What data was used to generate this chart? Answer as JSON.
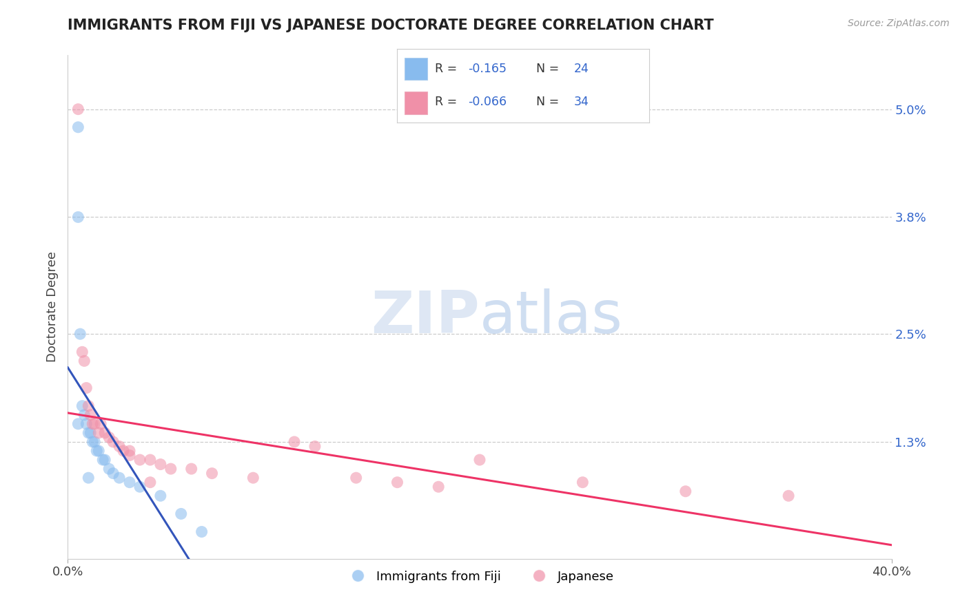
{
  "title": "IMMIGRANTS FROM FIJI VS JAPANESE DOCTORATE DEGREE CORRELATION CHART",
  "source_text": "Source: ZipAtlas.com",
  "ylabel": "Doctorate Degree",
  "xlim": [
    0,
    40
  ],
  "ylim": [
    0,
    5.6
  ],
  "ytick_vals": [
    1.3,
    2.5,
    3.8,
    5.0
  ],
  "ytick_labels": [
    "1.3%",
    "2.5%",
    "3.8%",
    "5.0%"
  ],
  "xtick_vals": [
    0,
    40
  ],
  "xtick_labels": [
    "0.0%",
    "40.0%"
  ],
  "series1_label": "Immigrants from Fiji",
  "series2_label": "Japanese",
  "fiji_color": "#88bbee",
  "japanese_color": "#f090a8",
  "fiji_line_color": "#3355bb",
  "japanese_line_color": "#ee3366",
  "watermark_color": "#dde8f5",
  "title_color": "#222222",
  "grid_color": "#cccccc",
  "background_color": "#ffffff",
  "fiji_R": -0.165,
  "fiji_N": 24,
  "japanese_R": -0.066,
  "japanese_N": 34,
  "fiji_points_x": [
    0.5,
    0.5,
    0.6,
    0.7,
    0.8,
    0.9,
    1.0,
    1.1,
    1.2,
    1.3,
    1.4,
    1.5,
    1.7,
    1.8,
    2.0,
    2.2,
    2.5,
    3.0,
    3.5,
    4.5,
    5.5,
    6.5,
    0.5,
    1.0
  ],
  "fiji_points_y": [
    4.8,
    3.8,
    2.5,
    1.7,
    1.6,
    1.5,
    1.4,
    1.4,
    1.3,
    1.3,
    1.2,
    1.2,
    1.1,
    1.1,
    1.0,
    0.95,
    0.9,
    0.85,
    0.8,
    0.7,
    0.5,
    0.3,
    1.5,
    0.9
  ],
  "japanese_points_x": [
    0.5,
    0.7,
    0.8,
    0.9,
    1.0,
    1.1,
    1.2,
    1.3,
    1.5,
    1.6,
    1.8,
    2.0,
    2.2,
    2.5,
    2.7,
    3.0,
    3.5,
    4.0,
    4.5,
    5.0,
    6.0,
    7.0,
    9.0,
    11.0,
    12.0,
    14.0,
    16.0,
    18.0,
    20.0,
    25.0,
    30.0,
    35.0,
    3.0,
    4.0
  ],
  "japanese_points_y": [
    5.0,
    2.3,
    2.2,
    1.9,
    1.7,
    1.6,
    1.5,
    1.5,
    1.4,
    1.5,
    1.4,
    1.35,
    1.3,
    1.25,
    1.2,
    1.15,
    1.1,
    1.1,
    1.05,
    1.0,
    1.0,
    0.95,
    0.9,
    1.3,
    1.25,
    0.9,
    0.85,
    0.8,
    1.1,
    0.85,
    0.75,
    0.7,
    1.2,
    0.85
  ]
}
